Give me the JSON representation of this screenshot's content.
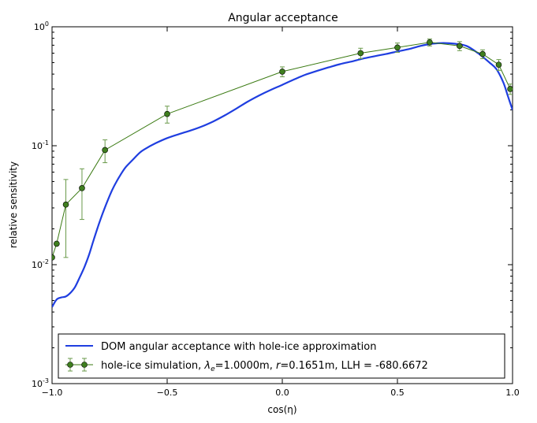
{
  "chart_data": {
    "type": "line",
    "title": "Angular acceptance",
    "xlabel": "cos(η)",
    "ylabel": "relative sensitivity",
    "xlim": [
      -1.0,
      1.0
    ],
    "ylim": [
      0.001,
      1.0
    ],
    "yscale": "log",
    "grid": false,
    "legend_position": "bottom",
    "x_ticks": [
      {
        "value": -1.0,
        "label": "−1.0"
      },
      {
        "value": -0.5,
        "label": "−0.5"
      },
      {
        "value": 0.0,
        "label": "0.0"
      },
      {
        "value": 0.5,
        "label": "0.5"
      },
      {
        "value": 1.0,
        "label": "1.0"
      }
    ],
    "y_ticks": [
      {
        "value": 0.001,
        "base": "10",
        "exp": "-3"
      },
      {
        "value": 0.01,
        "base": "10",
        "exp": "-2"
      },
      {
        "value": 0.1,
        "base": "10",
        "exp": "-1"
      },
      {
        "value": 1.0,
        "base": "10",
        "exp": "0"
      }
    ],
    "series": [
      {
        "name": "DOM angular acceptance with hole-ice approximation",
        "color": "#1f3ee0",
        "style": "line",
        "x": [
          -1.0,
          -0.98,
          -0.96,
          -0.94,
          -0.92,
          -0.9,
          -0.88,
          -0.86,
          -0.84,
          -0.82,
          -0.8,
          -0.78,
          -0.76,
          -0.74,
          -0.72,
          -0.7,
          -0.68,
          -0.65,
          -0.62,
          -0.6,
          -0.55,
          -0.5,
          -0.45,
          -0.4,
          -0.35,
          -0.3,
          -0.25,
          -0.2,
          -0.15,
          -0.1,
          -0.05,
          0.0,
          0.05,
          0.1,
          0.15,
          0.2,
          0.25,
          0.3,
          0.35,
          0.4,
          0.45,
          0.5,
          0.55,
          0.6,
          0.65,
          0.7,
          0.75,
          0.8,
          0.85,
          0.9,
          0.93,
          0.96,
          0.98,
          1.0
        ],
        "y": [
          0.0044,
          0.0051,
          0.0053,
          0.0054,
          0.0058,
          0.0065,
          0.0078,
          0.0095,
          0.012,
          0.016,
          0.021,
          0.027,
          0.034,
          0.042,
          0.05,
          0.058,
          0.066,
          0.076,
          0.087,
          0.093,
          0.105,
          0.116,
          0.125,
          0.134,
          0.145,
          0.16,
          0.18,
          0.205,
          0.235,
          0.265,
          0.295,
          0.325,
          0.36,
          0.395,
          0.425,
          0.455,
          0.485,
          0.51,
          0.54,
          0.565,
          0.59,
          0.62,
          0.65,
          0.69,
          0.72,
          0.73,
          0.72,
          0.69,
          0.6,
          0.5,
          0.44,
          0.34,
          0.26,
          0.2
        ]
      },
      {
        "name": "hole-ice simulation",
        "legend_label": "hole-ice simulation, λe=1.0000m, r=0.1651m, LLH = -680.6672",
        "color": "#3a7a12",
        "marker_fill": "#3f7f1f",
        "style": "line+errorbar",
        "x": [
          -1.0,
          -0.98,
          -0.94,
          -0.87,
          -0.77,
          -0.5,
          0.0,
          0.34,
          0.5,
          0.64,
          0.77,
          0.87,
          0.94,
          0.99
        ],
        "y": [
          0.0115,
          0.015,
          0.032,
          0.044,
          0.092,
          0.185,
          0.42,
          0.6,
          0.67,
          0.74,
          0.69,
          0.59,
          0.48,
          0.3
        ],
        "yerr_lo": [
          0.0115,
          0.015,
          0.0115,
          0.024,
          0.072,
          0.155,
          0.38,
          0.54,
          0.61,
          0.69,
          0.63,
          0.54,
          0.43,
          0.27
        ],
        "yerr_hi": [
          0.0115,
          0.015,
          0.052,
          0.064,
          0.112,
          0.215,
          0.46,
          0.66,
          0.73,
          0.79,
          0.75,
          0.64,
          0.53,
          0.33
        ]
      }
    ]
  },
  "legend": {
    "entry1": "DOM angular acceptance with hole-ice approximation",
    "entry2_prefix": "hole-ice simulation, ",
    "lambda_symbol": "λ",
    "lambda_sub": "e",
    "entry2_mid1": "=1.0000m, ",
    "r_symbol": "r",
    "entry2_mid2": "=0.1651m, LLH = -680.6672"
  }
}
